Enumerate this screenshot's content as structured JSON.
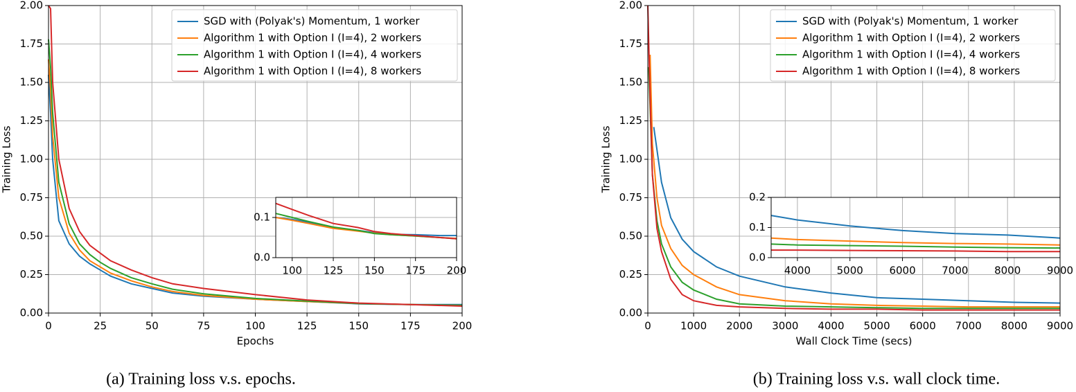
{
  "chart_data": [
    {
      "type": "line",
      "xlabel": "Epochs",
      "ylabel": "Training Loss",
      "caption": "(a) Training loss v.s. epochs.",
      "xlim": [
        0,
        200
      ],
      "ylim": [
        0,
        2
      ],
      "xticks": [
        0,
        25,
        50,
        75,
        100,
        125,
        150,
        175,
        200
      ],
      "yticks": [
        {
          "value": 0,
          "label": "0.00"
        },
        {
          "value": 0.25,
          "label": "0.25"
        },
        {
          "value": 0.5,
          "label": "0.50"
        },
        {
          "value": 0.75,
          "label": "0.75"
        },
        {
          "value": 1,
          "label": "1.00"
        },
        {
          "value": 1.25,
          "label": "1.25"
        },
        {
          "value": 1.5,
          "label": "1.50"
        },
        {
          "value": 1.75,
          "label": "1.75"
        },
        {
          "value": 2,
          "label": "2.00"
        }
      ],
      "grid": true,
      "legend": "upper right",
      "series": [
        {
          "name": "SGD with (Polyak's) Momentum, 1 worker",
          "color": "#1f77b4",
          "x": [
            0,
            1,
            2,
            5,
            10,
            15,
            20,
            25,
            30,
            40,
            50,
            60,
            75,
            100,
            125,
            150,
            175,
            200
          ],
          "values": [
            1.55,
            1.3,
            1.0,
            0.6,
            0.45,
            0.37,
            0.32,
            0.28,
            0.24,
            0.19,
            0.16,
            0.13,
            0.11,
            0.09,
            0.075,
            0.06,
            0.055,
            0.055
          ]
        },
        {
          "name": "Algorithm 1 with Option I (I=4), 2 workers",
          "color": "#ff7f0e",
          "x": [
            0,
            1,
            2,
            5,
            10,
            15,
            20,
            25,
            30,
            40,
            50,
            60,
            75,
            100,
            125,
            150,
            175,
            200
          ],
          "values": [
            1.65,
            1.45,
            1.15,
            0.75,
            0.52,
            0.41,
            0.34,
            0.3,
            0.26,
            0.21,
            0.17,
            0.14,
            0.115,
            0.09,
            0.075,
            0.062,
            0.055,
            0.05
          ]
        },
        {
          "name": "Algorithm 1 with Option I (I=4), 4 workers",
          "color": "#2ca02c",
          "x": [
            0,
            1,
            2,
            5,
            10,
            15,
            20,
            25,
            30,
            40,
            50,
            60,
            75,
            100,
            125,
            150,
            175,
            200
          ],
          "values": [
            1.78,
            1.6,
            1.3,
            0.85,
            0.58,
            0.45,
            0.38,
            0.33,
            0.29,
            0.23,
            0.19,
            0.155,
            0.125,
            0.095,
            0.078,
            0.062,
            0.055,
            0.05
          ]
        },
        {
          "name": "Algorithm 1 with Option I (I=4), 8 workers",
          "color": "#d62728",
          "x": [
            0,
            1,
            2,
            5,
            10,
            15,
            20,
            25,
            30,
            40,
            50,
            60,
            75,
            100,
            125,
            150,
            175,
            200
          ],
          "values": [
            2.0,
            1.98,
            1.5,
            1.0,
            0.68,
            0.53,
            0.44,
            0.39,
            0.34,
            0.28,
            0.23,
            0.19,
            0.16,
            0.12,
            0.085,
            0.065,
            0.055,
            0.045
          ]
        }
      ]
    },
    {
      "type": "line",
      "xlim": [
        90,
        200
      ],
      "ylim": [
        0,
        0.15
      ],
      "xticks": [
        100,
        125,
        150,
        175,
        200
      ],
      "yticks": [
        {
          "value": 0,
          "label": "0.0"
        },
        {
          "value": 0.1,
          "label": "0.1"
        }
      ],
      "grid": true,
      "series": [
        {
          "color": "#1f77b4",
          "x": [
            90,
            100,
            110,
            125,
            140,
            150,
            160,
            175,
            190,
            200
          ],
          "values": [
            0.1,
            0.095,
            0.088,
            0.075,
            0.068,
            0.062,
            0.058,
            0.057,
            0.055,
            0.055
          ]
        },
        {
          "color": "#ff7f0e",
          "x": [
            90,
            100,
            110,
            125,
            140,
            150,
            160,
            175,
            190,
            200
          ],
          "values": [
            0.1,
            0.093,
            0.085,
            0.073,
            0.066,
            0.061,
            0.057,
            0.054,
            0.05,
            0.048
          ]
        },
        {
          "color": "#2ca02c",
          "x": [
            90,
            100,
            110,
            125,
            140,
            150,
            160,
            175,
            190,
            200
          ],
          "values": [
            0.11,
            0.1,
            0.09,
            0.076,
            0.068,
            0.06,
            0.057,
            0.054,
            0.05,
            0.047
          ]
        },
        {
          "color": "#d62728",
          "x": [
            90,
            100,
            110,
            125,
            140,
            150,
            160,
            175,
            190,
            200
          ],
          "values": [
            0.135,
            0.12,
            0.105,
            0.085,
            0.075,
            0.065,
            0.06,
            0.055,
            0.05,
            0.047
          ]
        }
      ]
    },
    {
      "type": "line",
      "xlabel": "Wall Clock Time (secs)",
      "ylabel": "Training Loss",
      "caption": "(b) Training loss v.s. wall clock time.",
      "xlim": [
        0,
        9000
      ],
      "ylim": [
        0,
        2
      ],
      "xticks": [
        0,
        1000,
        2000,
        3000,
        4000,
        5000,
        6000,
        7000,
        8000,
        9000
      ],
      "yticks": [
        {
          "value": 0,
          "label": "0.00"
        },
        {
          "value": 0.25,
          "label": "0.25"
        },
        {
          "value": 0.5,
          "label": "0.50"
        },
        {
          "value": 0.75,
          "label": "0.75"
        },
        {
          "value": 1,
          "label": "1.00"
        },
        {
          "value": 1.25,
          "label": "1.25"
        },
        {
          "value": 1.5,
          "label": "1.50"
        },
        {
          "value": 1.75,
          "label": "1.75"
        },
        {
          "value": 2,
          "label": "2.00"
        }
      ],
      "grid": true,
      "legend": "upper right",
      "series": [
        {
          "name": "SGD with (Polyak's) Momentum, 1 worker",
          "color": "#1f77b4",
          "x": [
            130,
            300,
            500,
            750,
            1000,
            1500,
            2000,
            3000,
            4000,
            5000,
            6000,
            7000,
            8000,
            9000
          ],
          "values": [
            1.21,
            0.85,
            0.62,
            0.48,
            0.4,
            0.3,
            0.24,
            0.17,
            0.13,
            0.1,
            0.09,
            0.08,
            0.07,
            0.065
          ]
        },
        {
          "name": "Algorithm 1 with Option I (I=4), 2 workers",
          "color": "#ff7f0e",
          "x": [
            50,
            100,
            200,
            300,
            500,
            750,
            1000,
            1500,
            2000,
            3000,
            4000,
            5000,
            6000,
            7000,
            8000,
            9000
          ],
          "values": [
            1.68,
            1.1,
            0.75,
            0.57,
            0.42,
            0.31,
            0.25,
            0.17,
            0.12,
            0.08,
            0.06,
            0.05,
            0.045,
            0.04,
            0.04,
            0.04
          ]
        },
        {
          "name": "Algorithm 1 with Option I (I=4), 4 workers",
          "color": "#2ca02c",
          "x": [
            20,
            100,
            200,
            300,
            500,
            750,
            1000,
            1500,
            2000,
            3000,
            4000,
            5000,
            6000,
            7000,
            8000,
            9000
          ],
          "values": [
            1.6,
            0.9,
            0.6,
            0.45,
            0.3,
            0.2,
            0.15,
            0.09,
            0.06,
            0.045,
            0.04,
            0.035,
            0.03,
            0.03,
            0.03,
            0.03
          ]
        },
        {
          "name": "Algorithm 1 with Option I (I=4), 8 workers",
          "color": "#d62728",
          "x": [
            0,
            50,
            100,
            200,
            300,
            500,
            750,
            1000,
            1500,
            2000,
            3000,
            4000,
            5000,
            6000,
            7000,
            8000,
            9000
          ],
          "values": [
            2.0,
            1.4,
            0.9,
            0.55,
            0.4,
            0.22,
            0.12,
            0.08,
            0.05,
            0.04,
            0.03,
            0.025,
            0.025,
            0.02,
            0.02,
            0.02,
            0.02
          ]
        }
      ]
    },
    {
      "type": "line",
      "xlim": [
        3500,
        9000
      ],
      "ylim": [
        0,
        0.2
      ],
      "xticks": [
        4000,
        5000,
        6000,
        7000,
        8000,
        9000
      ],
      "yticks": [
        {
          "value": 0,
          "label": "0.0"
        },
        {
          "value": 0.1,
          "label": "0.1"
        },
        {
          "value": 0.2,
          "label": "0.2"
        }
      ],
      "grid": true,
      "series": [
        {
          "color": "#1f77b4",
          "x": [
            3500,
            4000,
            5000,
            6000,
            7000,
            8000,
            9000
          ],
          "values": [
            0.14,
            0.125,
            0.105,
            0.09,
            0.08,
            0.075,
            0.065
          ]
        },
        {
          "color": "#ff7f0e",
          "x": [
            3500,
            4000,
            5000,
            6000,
            7000,
            8000,
            9000
          ],
          "values": [
            0.065,
            0.06,
            0.055,
            0.05,
            0.047,
            0.045,
            0.042
          ]
        },
        {
          "color": "#2ca02c",
          "x": [
            3500,
            4000,
            5000,
            6000,
            7000,
            8000,
            9000
          ],
          "values": [
            0.045,
            0.042,
            0.04,
            0.038,
            0.035,
            0.033,
            0.032
          ]
        },
        {
          "color": "#d62728",
          "x": [
            3500,
            4000,
            5000,
            6000,
            7000,
            8000,
            9000
          ],
          "values": [
            0.025,
            0.025,
            0.024,
            0.023,
            0.022,
            0.02,
            0.02
          ]
        }
      ]
    }
  ]
}
